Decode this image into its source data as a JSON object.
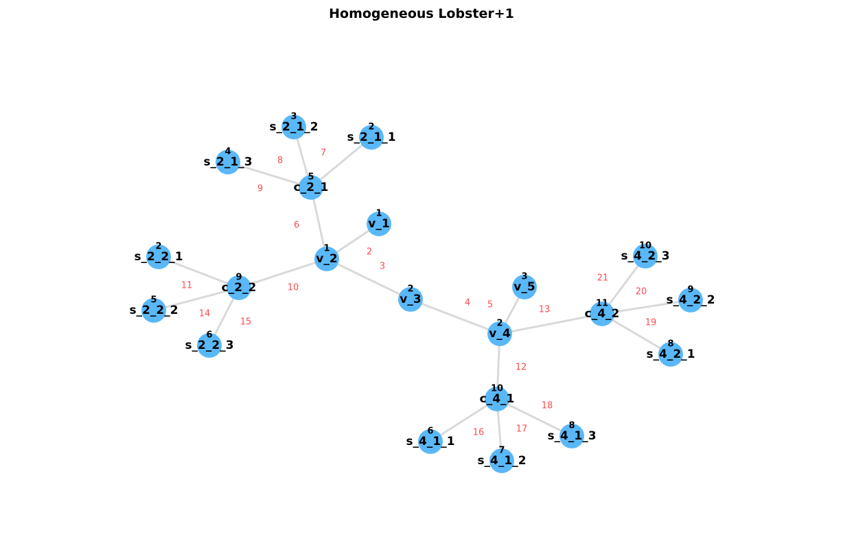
{
  "title": "Homogeneous Lobster+1",
  "colors": {
    "node_fill": "#5ab8f8",
    "edge_stroke": "#d9d9d9",
    "edge_label": "#ff4d4d"
  },
  "nodes": [
    {
      "id": "v_1",
      "label": "1"
    },
    {
      "id": "v_2",
      "label": "1"
    },
    {
      "id": "v_3",
      "label": "2"
    },
    {
      "id": "v_4",
      "label": "2"
    },
    {
      "id": "v_5",
      "label": "3"
    },
    {
      "id": "c_2_1",
      "label": "5"
    },
    {
      "id": "c_2_2",
      "label": "9"
    },
    {
      "id": "c_4_1",
      "label": "10"
    },
    {
      "id": "c_4_2",
      "label": "11"
    },
    {
      "id": "s_2_1_1",
      "label": "2"
    },
    {
      "id": "s_2_1_2",
      "label": "3"
    },
    {
      "id": "s_2_1_3",
      "label": "4"
    },
    {
      "id": "s_2_2_1",
      "label": "2"
    },
    {
      "id": "s_2_2_2",
      "label": "5"
    },
    {
      "id": "s_2_2_3",
      "label": "6"
    },
    {
      "id": "s_4_1_1",
      "label": "6"
    },
    {
      "id": "s_4_1_2",
      "label": "7"
    },
    {
      "id": "s_4_1_3",
      "label": "8"
    },
    {
      "id": "s_4_2_1",
      "label": "8"
    },
    {
      "id": "s_4_2_2",
      "label": "9"
    },
    {
      "id": "s_4_2_3",
      "label": "10"
    }
  ],
  "edges": [
    {
      "source": "v_1",
      "target": "v_2",
      "label": "2"
    },
    {
      "source": "v_2",
      "target": "v_3",
      "label": "3"
    },
    {
      "source": "v_3",
      "target": "v_4",
      "label": "4"
    },
    {
      "source": "v_4",
      "target": "v_5",
      "label": "5"
    },
    {
      "source": "v_2",
      "target": "c_2_1",
      "label": "6"
    },
    {
      "source": "c_2_1",
      "target": "s_2_1_1",
      "label": "7"
    },
    {
      "source": "c_2_1",
      "target": "s_2_1_2",
      "label": "8"
    },
    {
      "source": "c_2_1",
      "target": "s_2_1_3",
      "label": "9"
    },
    {
      "source": "v_2",
      "target": "c_2_2",
      "label": "10"
    },
    {
      "source": "c_2_2",
      "target": "s_2_2_1",
      "label": "11"
    },
    {
      "source": "v_4",
      "target": "c_4_1",
      "label": "12"
    },
    {
      "source": "v_4",
      "target": "c_4_2",
      "label": "13"
    },
    {
      "source": "c_2_2",
      "target": "s_2_2_2",
      "label": "14"
    },
    {
      "source": "c_2_2",
      "target": "s_2_2_3",
      "label": "15"
    },
    {
      "source": "c_4_1",
      "target": "s_4_1_1",
      "label": "16"
    },
    {
      "source": "c_4_1",
      "target": "s_4_1_2",
      "label": "17"
    },
    {
      "source": "c_4_1",
      "target": "s_4_1_3",
      "label": "18"
    },
    {
      "source": "c_4_2",
      "target": "s_4_2_1",
      "label": "19"
    },
    {
      "source": "c_4_2",
      "target": "s_4_2_2",
      "label": "20"
    },
    {
      "source": "c_4_2",
      "target": "s_4_2_3",
      "label": "21"
    }
  ]
}
